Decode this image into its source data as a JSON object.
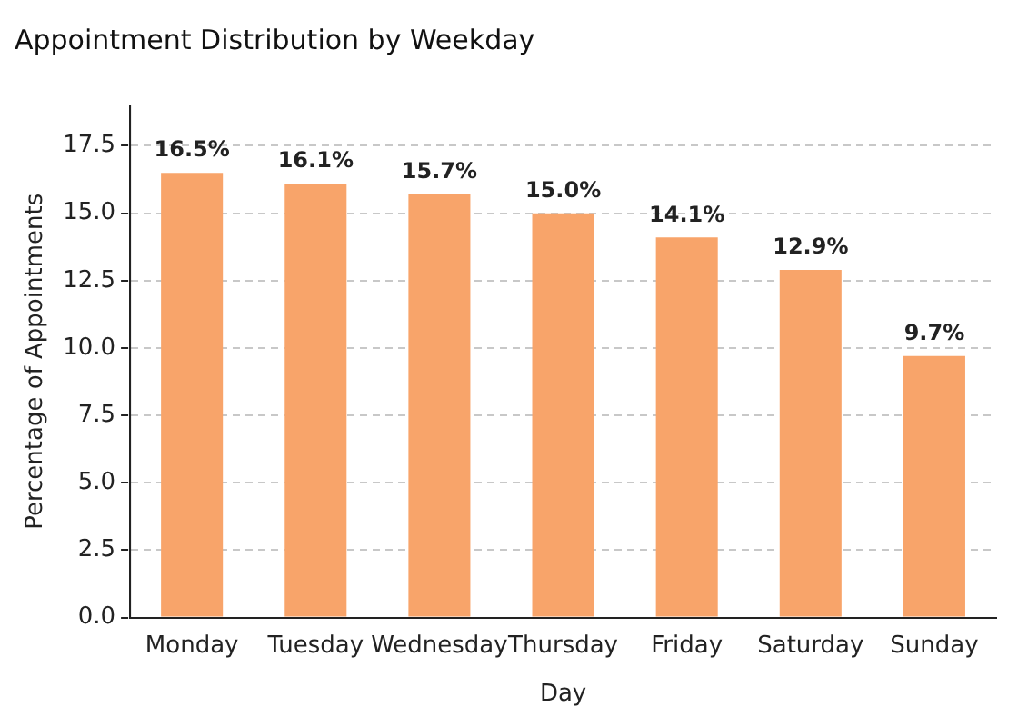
{
  "chart_data": {
    "type": "bar",
    "title": "Appointment Distribution by Weekday",
    "xlabel": "Day",
    "ylabel": "Percentage of Appointments",
    "categories": [
      "Monday",
      "Tuesday",
      "Wednesday",
      "Thursday",
      "Friday",
      "Saturday",
      "Sunday"
    ],
    "values": [
      16.5,
      16.1,
      15.7,
      15.0,
      14.1,
      12.9,
      9.7
    ],
    "value_labels": [
      "16.5%",
      "16.1%",
      "15.7%",
      "15.0%",
      "14.1%",
      "12.9%",
      "9.7%"
    ],
    "color": "#f8a46a",
    "ylim": [
      0,
      19
    ],
    "yticks": [
      {
        "value": 0,
        "label": "0.0"
      },
      {
        "value": 2.5,
        "label": "2.5"
      },
      {
        "value": 5,
        "label": "5.0"
      },
      {
        "value": 7.5,
        "label": "7.5"
      },
      {
        "value": 10,
        "label": "10.0"
      },
      {
        "value": 12.5,
        "label": "12.5"
      },
      {
        "value": 15,
        "label": "15.0"
      },
      {
        "value": 17.5,
        "label": "17.5"
      }
    ],
    "grid": "y",
    "legend": false
  }
}
